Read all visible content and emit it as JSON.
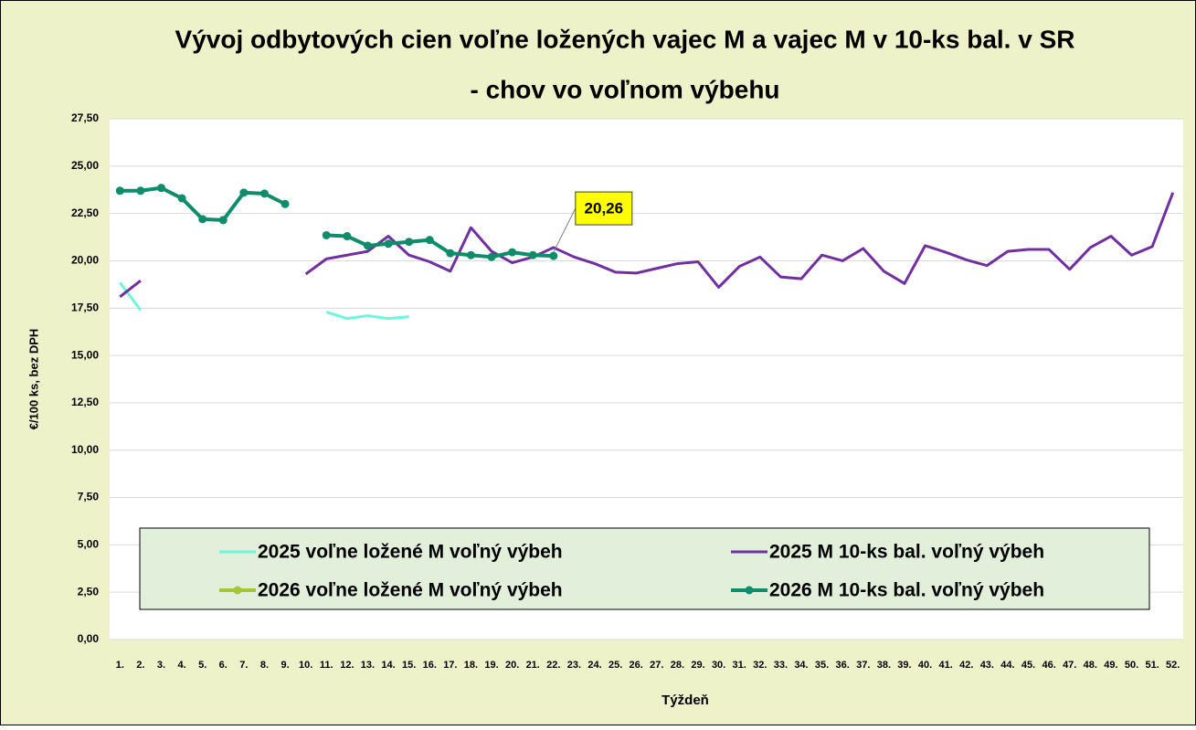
{
  "chart_data": {
    "type": "line",
    "title": "Vývoj odbytových cien voľne ložených vajec M a vajec M v 10-ks bal. v SR",
    "subtitle": "- chov vo voľnom výbehu",
    "x_label": "Týždeň",
    "y_label": "€/100 ks, bez DPH",
    "categories": [
      "1.",
      "2.",
      "3.",
      "4.",
      "5.",
      "6.",
      "7.",
      "8.",
      "9.",
      "10.",
      "11.",
      "12.",
      "13.",
      "14.",
      "15.",
      "16.",
      "17.",
      "18.",
      "19.",
      "20.",
      "21.",
      "22.",
      "23.",
      "24.",
      "25.",
      "26.",
      "27.",
      "28.",
      "29.",
      "30.",
      "31.",
      "32.",
      "33.",
      "34.",
      "35.",
      "36.",
      "37.",
      "38.",
      "39.",
      "40.",
      "41.",
      "42.",
      "43.",
      "44.",
      "45.",
      "46.",
      "47.",
      "48.",
      "49.",
      "50.",
      "51.",
      "52."
    ],
    "ylim": [
      0,
      27.5
    ],
    "yticks": [
      {
        "value": 0,
        "label": "0,00"
      },
      {
        "value": 2.5,
        "label": "2,50"
      },
      {
        "value": 5,
        "label": "5,00"
      },
      {
        "value": 7.5,
        "label": "7,50"
      },
      {
        "value": 10,
        "label": "10,00"
      },
      {
        "value": 12.5,
        "label": "12,50"
      },
      {
        "value": 15,
        "label": "15,00"
      },
      {
        "value": 17.5,
        "label": "17,50"
      },
      {
        "value": 20,
        "label": "20,00"
      },
      {
        "value": 22.5,
        "label": "22,50"
      },
      {
        "value": 25,
        "label": "25,00"
      },
      {
        "value": 27.5,
        "label": "27,50"
      }
    ],
    "grid": true,
    "legend": "bottom",
    "series": [
      {
        "name": "2025 voľne ložené M voľný výbeh",
        "color": "#6ff5dc",
        "markers": false,
        "values": [
          18.85,
          17.4,
          null,
          null,
          null,
          null,
          null,
          null,
          null,
          null,
          17.3,
          16.95,
          17.1,
          16.95,
          17.05,
          null,
          null,
          null,
          null,
          null,
          null,
          null,
          null,
          null,
          null,
          null,
          null,
          null,
          null,
          null,
          null,
          null,
          null,
          null,
          null,
          null,
          null,
          null,
          null,
          null,
          null,
          null,
          null,
          null,
          null,
          null,
          null,
          null,
          null,
          null,
          null,
          null
        ]
      },
      {
        "name": "2025 M 10-ks bal. voľný výbeh",
        "color": "#7030a0",
        "markers": false,
        "values": [
          18.1,
          18.95,
          null,
          null,
          null,
          null,
          null,
          null,
          null,
          19.3,
          20.1,
          20.3,
          20.5,
          21.3,
          20.3,
          19.95,
          19.45,
          21.75,
          20.5,
          19.9,
          20.2,
          20.7,
          20.2,
          19.85,
          19.4,
          19.35,
          19.6,
          19.85,
          19.95,
          18.6,
          19.7,
          20.2,
          19.15,
          19.05,
          20.3,
          20.0,
          20.65,
          19.45,
          18.8,
          20.8,
          20.45,
          20.05,
          19.75,
          20.5,
          20.6,
          20.6,
          19.55,
          20.7,
          21.3,
          20.3,
          20.75,
          23.6
        ]
      },
      {
        "name": "2026 voľne ložené M voľný výbeh",
        "color": "#a4c639",
        "markers": true,
        "values": [
          null,
          null,
          null,
          null,
          null,
          null,
          null,
          null,
          null,
          null,
          null,
          null,
          null,
          null,
          null,
          null,
          null,
          null,
          null,
          null,
          null,
          null,
          null,
          null,
          null,
          null,
          null,
          null,
          null,
          null,
          null,
          null,
          null,
          null,
          null,
          null,
          null,
          null,
          null,
          null,
          null,
          null,
          null,
          null,
          null,
          null,
          null,
          null,
          null,
          null,
          null,
          null
        ]
      },
      {
        "name": "2026 M 10-ks bal. voľný výbeh",
        "color": "#0f8c6a",
        "markers": true,
        "values": [
          23.7,
          23.7,
          23.85,
          23.3,
          22.2,
          22.15,
          23.6,
          23.55,
          23.0,
          null,
          21.35,
          21.3,
          20.8,
          20.9,
          21.0,
          21.1,
          20.4,
          20.3,
          20.2,
          20.45,
          20.3,
          20.26,
          null,
          null,
          null,
          null,
          null,
          null,
          null,
          null,
          null,
          null,
          null,
          null,
          null,
          null,
          null,
          null,
          null,
          null,
          null,
          null,
          null,
          null,
          null,
          null,
          null,
          null,
          null,
          null,
          null,
          null
        ],
        "value_labels": [
          null,
          null,
          null,
          null,
          null,
          null,
          null,
          null,
          null,
          null,
          null,
          null,
          null,
          null,
          null,
          null,
          null,
          null,
          null,
          null,
          null,
          "20,26",
          null,
          null,
          null,
          null,
          null,
          null,
          null,
          null,
          null,
          null,
          null,
          null,
          null,
          null,
          null,
          null,
          null,
          null,
          null,
          null,
          null,
          null,
          null,
          null,
          null,
          null,
          null,
          null,
          null,
          null
        ]
      }
    ]
  }
}
